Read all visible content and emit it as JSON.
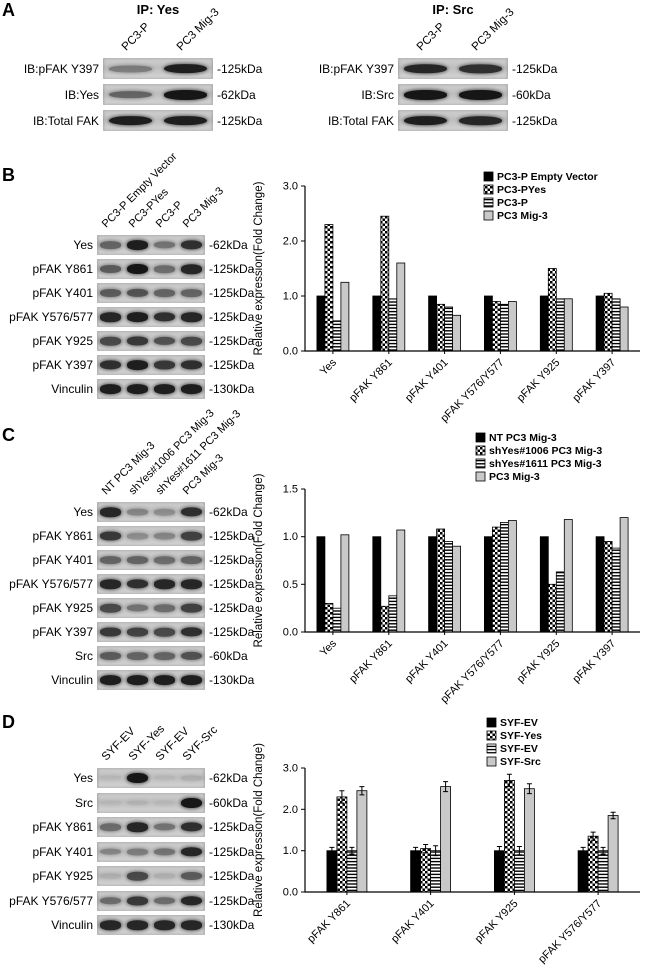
{
  "colors": {
    "background": "#ffffff",
    "text": "#000000",
    "band": "#161616",
    "blot_background": "#c8c8c8",
    "bar_solid": "#000000",
    "bar_light_gray": "#c9c9c9"
  },
  "panels": [
    {
      "id": "A",
      "label": "A",
      "blots": [
        {
          "title": "IP: Yes",
          "lanes": [
            "PC3-P",
            "PC3 Mig-3"
          ],
          "rows": [
            {
              "label": "IB:pFAK Y397",
              "mw": "-125kDa",
              "bands": [
                0.4,
                0.95
              ]
            },
            {
              "label": "IB:Yes",
              "mw": "-62kDa",
              "bands": [
                0.55,
                1.0
              ]
            },
            {
              "label": "IB:Total FAK",
              "mw": "-125kDa",
              "bands": [
                0.95,
                0.95
              ]
            }
          ]
        },
        {
          "title": "IP: Src",
          "lanes": [
            "PC3-P",
            "PC3 Mig-3"
          ],
          "rows": [
            {
              "label": "IB:pFAK Y397",
              "mw": "-125kDa",
              "bands": [
                0.9,
                0.85
              ]
            },
            {
              "label": "IB:Src",
              "mw": "-60kDa",
              "bands": [
                1.0,
                1.0
              ]
            },
            {
              "label": "IB:Total FAK",
              "mw": "-125kDa",
              "bands": [
                0.95,
                0.9
              ]
            }
          ]
        }
      ]
    },
    {
      "id": "B",
      "label": "B",
      "blot": {
        "lanes": [
          "PC3-P Empty Vector",
          "PC3-PYes",
          "PC3-P",
          "PC3 Mig-3"
        ],
        "rows": [
          {
            "label": "Yes",
            "mw": "-62kDa",
            "bands": [
              0.55,
              0.95,
              0.45,
              0.85
            ]
          },
          {
            "label": "pFAK Y861",
            "mw": "-125kDa",
            "bands": [
              0.6,
              1.0,
              0.5,
              0.9
            ]
          },
          {
            "label": "pFAK Y401",
            "mw": "-125kDa",
            "bands": [
              0.6,
              0.65,
              0.55,
              0.55
            ]
          },
          {
            "label": "pFAK Y576/577",
            "mw": "-125kDa",
            "bands": [
              0.9,
              0.95,
              0.85,
              0.9
            ]
          },
          {
            "label": "pFAK Y925",
            "mw": "-125kDa",
            "bands": [
              0.7,
              0.8,
              0.65,
              0.7
            ]
          },
          {
            "label": "pFAK Y397",
            "mw": "-125kDa",
            "bands": [
              0.85,
              0.95,
              0.8,
              0.85
            ]
          },
          {
            "label": "Vinculin",
            "mw": "-130kDa",
            "bands": [
              0.95,
              0.95,
              0.95,
              0.95
            ]
          }
        ]
      },
      "chart_index": 0
    },
    {
      "id": "C",
      "label": "C",
      "blot": {
        "lanes": [
          "NT PC3 Mig-3",
          "shYes#1006 PC3 Mig-3",
          "shYes#1611 PC3 Mig-3",
          "PC3 Mig-3"
        ],
        "rows": [
          {
            "label": "Yes",
            "mw": "-62kDa",
            "bands": [
              0.9,
              0.35,
              0.3,
              0.85
            ]
          },
          {
            "label": "pFAK Y861",
            "mw": "-125kDa",
            "bands": [
              0.8,
              0.3,
              0.35,
              0.75
            ]
          },
          {
            "label": "pFAK Y401",
            "mw": "-125kDa",
            "bands": [
              0.55,
              0.55,
              0.5,
              0.55
            ]
          },
          {
            "label": "pFAK Y576/577",
            "mw": "-125kDa",
            "bands": [
              0.9,
              0.85,
              0.9,
              0.9
            ]
          },
          {
            "label": "pFAK Y925",
            "mw": "-125kDa",
            "bands": [
              0.7,
              0.45,
              0.5,
              0.75
            ]
          },
          {
            "label": "pFAK Y397",
            "mw": "-125kDa",
            "bands": [
              0.8,
              0.75,
              0.7,
              0.85
            ]
          },
          {
            "label": "Src",
            "mw": "-60kDa",
            "bands": [
              0.6,
              0.55,
              0.55,
              0.65
            ]
          },
          {
            "label": "Vinculin",
            "mw": "-130kDa",
            "bands": [
              0.95,
              0.95,
              0.95,
              0.95
            ]
          }
        ]
      },
      "chart_index": 1
    },
    {
      "id": "D",
      "label": "D",
      "blot": {
        "lanes": [
          "SYF-EV",
          "SYF-Yes",
          "SYF-EV",
          "SYF-Src"
        ],
        "rows": [
          {
            "label": "Yes",
            "mw": "-62kDa",
            "bands": [
              0.05,
              1.0,
              0.05,
              0.1
            ]
          },
          {
            "label": "Src",
            "mw": "-60kDa",
            "bands": [
              0.05,
              0.08,
              0.05,
              1.0
            ]
          },
          {
            "label": "pFAK Y861",
            "mw": "-125kDa",
            "bands": [
              0.5,
              0.9,
              0.45,
              0.85
            ]
          },
          {
            "label": "pFAK Y401",
            "mw": "-125kDa",
            "bands": [
              0.35,
              0.4,
              0.45,
              0.9
            ]
          },
          {
            "label": "pFAK Y925",
            "mw": "-125kDa",
            "bands": [
              0.1,
              0.7,
              0.1,
              0.6
            ]
          },
          {
            "label": "pFAK Y576/577",
            "mw": "-125kDa",
            "bands": [
              0.5,
              0.8,
              0.5,
              0.9
            ]
          },
          {
            "label": "Vinculin",
            "mw": "-130kDa",
            "bands": [
              0.9,
              0.9,
              0.9,
              0.9
            ]
          }
        ]
      },
      "chart_index": 2
    }
  ],
  "chart_data": [
    {
      "panel": "B",
      "type": "bar",
      "title": "",
      "xlabel": "",
      "ylabel": "Relative expression(Fold Change)",
      "ylim": [
        0,
        3.0
      ],
      "yticks": [
        "0.0",
        "1.0",
        "2.0",
        "3.0"
      ],
      "grid": false,
      "legend_position": "top-right",
      "categories": [
        "Yes",
        "pFAK Y861",
        "pFAK Y401",
        "pFAK Y576/Y577",
        "pFAK Y925",
        "pFAK Y397"
      ],
      "series": [
        {
          "name": "PC3-P Empty Vector",
          "style": "solid-black",
          "values": [
            1.0,
            1.0,
            1.0,
            1.0,
            1.0,
            1.0
          ]
        },
        {
          "name": "PC3-PYes",
          "style": "checkerboard",
          "values": [
            2.3,
            2.45,
            0.85,
            0.9,
            1.5,
            1.05
          ]
        },
        {
          "name": "PC3-P",
          "style": "horizontal-stripes",
          "values": [
            0.55,
            0.95,
            0.8,
            0.85,
            0.95,
            0.95
          ]
        },
        {
          "name": "PC3 Mig-3",
          "style": "light-gray",
          "values": [
            1.25,
            1.6,
            0.65,
            0.9,
            0.95,
            0.8
          ]
        }
      ]
    },
    {
      "panel": "C",
      "type": "bar",
      "title": "",
      "xlabel": "",
      "ylabel": "Relative expression(Fold Change)",
      "ylim": [
        0,
        1.5
      ],
      "yticks": [
        "0.0",
        "0.5",
        "1.0",
        "1.5"
      ],
      "grid": false,
      "legend_position": "top-right",
      "categories": [
        "Yes",
        "pFAK Y861",
        "pFAK Y401",
        "pFAK Y576/Y577",
        "pFAK Y925",
        "pFAK Y397"
      ],
      "series": [
        {
          "name": "NT PC3 Mig-3",
          "style": "solid-black",
          "values": [
            1.0,
            1.0,
            1.0,
            1.0,
            1.0,
            1.0
          ]
        },
        {
          "name": "shYes#1006 PC3 Mig-3",
          "style": "checkerboard",
          "values": [
            0.3,
            0.27,
            1.08,
            1.1,
            0.5,
            0.95
          ]
        },
        {
          "name": "shYes#1611 PC3 Mig-3",
          "style": "horizontal-stripes",
          "values": [
            0.25,
            0.38,
            0.95,
            1.15,
            0.63,
            0.88
          ]
        },
        {
          "name": "PC3 Mig-3",
          "style": "light-gray",
          "values": [
            1.02,
            1.07,
            0.9,
            1.17,
            1.18,
            1.2
          ]
        }
      ]
    },
    {
      "panel": "D",
      "type": "bar",
      "title": "",
      "xlabel": "",
      "ylabel": "Relative expression(Fold Change)",
      "ylim": [
        0,
        3.0
      ],
      "yticks": [
        "0.0",
        "1.0",
        "2.0",
        "3.0"
      ],
      "grid": false,
      "legend_position": "top-right",
      "error_bars": true,
      "categories": [
        "pFAK Y861",
        "pFAK Y401",
        "pFAK Y925",
        "pFAK Y576/Y577"
      ],
      "series": [
        {
          "name": "SYF-EV",
          "style": "solid-black",
          "values": [
            1.0,
            1.0,
            1.0,
            1.0
          ],
          "errors": [
            0.08,
            0.08,
            0.1,
            0.08
          ]
        },
        {
          "name": "SYF-Yes",
          "style": "checkerboard",
          "values": [
            2.3,
            1.05,
            2.7,
            1.35
          ],
          "errors": [
            0.15,
            0.1,
            0.15,
            0.1
          ]
        },
        {
          "name": "SYF-EV",
          "style": "horizontal-stripes",
          "values": [
            1.0,
            1.0,
            1.0,
            1.0
          ],
          "errors": [
            0.08,
            0.12,
            0.1,
            0.08
          ]
        },
        {
          "name": "SYF-Src",
          "style": "light-gray",
          "values": [
            2.45,
            2.55,
            2.5,
            1.85
          ],
          "errors": [
            0.1,
            0.12,
            0.12,
            0.08
          ]
        }
      ]
    }
  ]
}
